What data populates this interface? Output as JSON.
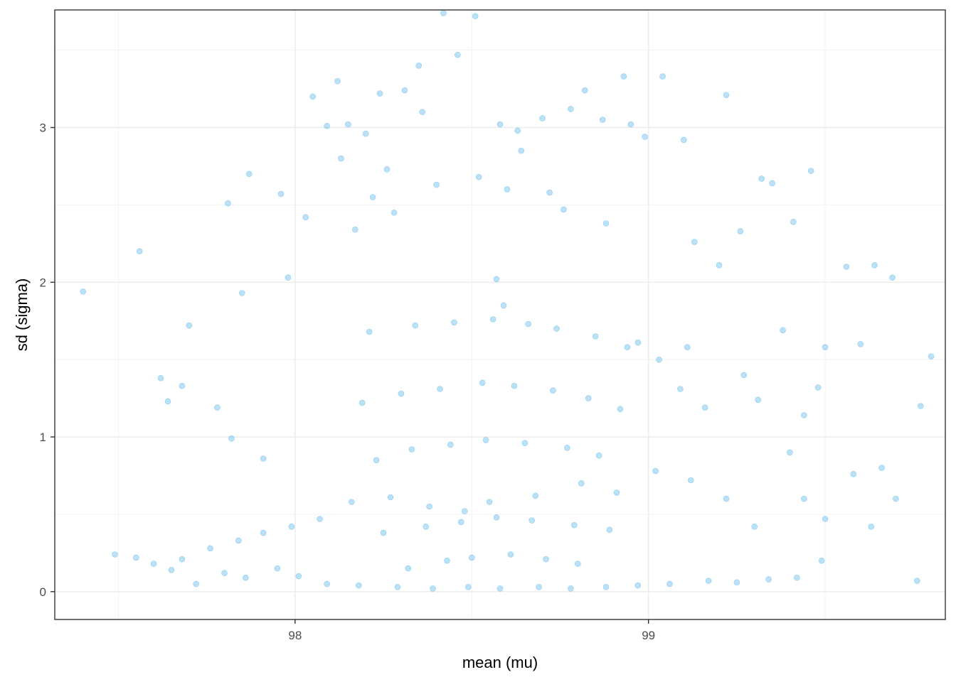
{
  "chart_data": {
    "type": "scatter",
    "xlabel": "mean (mu)",
    "ylabel": "sd (sigma)",
    "xlim": [
      97.32,
      99.84
    ],
    "ylim": [
      -0.18,
      3.76
    ],
    "x_ticks": [
      98,
      99
    ],
    "x_tick_labels": [
      "98",
      "99"
    ],
    "y_ticks": [
      0,
      1,
      2,
      3
    ],
    "y_tick_labels": [
      "0",
      "1",
      "2",
      "3"
    ],
    "grid": true,
    "legend": "none",
    "point_color": "#56B4E9",
    "point_alpha": 0.4,
    "series": [
      {
        "x": [
          98.42,
          98.51,
          98.46,
          98.35,
          98.58,
          98.24,
          98.31,
          98.12,
          98.05,
          98.15,
          98.09,
          98.82,
          98.78,
          98.93,
          99.04,
          99.22,
          98.87,
          98.7,
          98.63,
          98.95,
          98.36,
          98.2,
          98.13,
          98.26,
          98.64,
          98.99,
          99.1,
          99.32,
          99.46,
          99.35,
          98.03,
          97.96,
          97.87,
          97.98,
          97.85,
          97.81,
          97.4,
          97.56,
          97.7,
          97.68,
          97.62,
          97.64,
          97.78,
          97.49,
          97.82,
          97.91,
          98.22,
          98.4,
          98.28,
          98.17,
          98.52,
          98.6,
          98.72,
          98.76,
          98.88,
          99.13,
          99.2,
          99.26,
          99.41,
          99.56,
          99.64,
          99.69,
          99.8,
          99.77,
          99.6,
          99.5,
          99.48,
          99.38,
          99.27,
          99.16,
          99.09,
          98.97,
          99.11,
          99.31,
          99.44,
          99.66,
          99.58,
          99.4,
          99.44,
          99.49,
          99.5,
          99.76,
          99.7,
          99.63,
          99.3,
          99.22,
          99.12,
          99.02,
          98.91,
          98.81,
          98.68,
          98.55,
          98.48,
          98.38,
          98.27,
          98.16,
          98.07,
          97.99,
          97.91,
          97.84,
          97.76,
          97.68,
          97.6,
          97.55,
          97.65,
          97.72,
          97.8,
          97.86,
          97.95,
          98.01,
          98.09,
          98.18,
          98.29,
          98.39,
          98.49,
          98.58,
          98.69,
          98.78,
          98.88,
          98.97,
          99.06,
          99.17,
          99.25,
          99.34,
          99.42,
          98.21,
          98.34,
          98.45,
          98.56,
          98.66,
          98.74,
          98.85,
          98.94,
          99.03,
          98.19,
          98.3,
          98.41,
          98.53,
          98.62,
          98.73,
          98.83,
          98.92,
          98.23,
          98.33,
          98.44,
          98.54,
          98.65,
          98.77,
          98.86,
          98.25,
          98.37,
          98.47,
          98.57,
          98.67,
          98.79,
          98.89,
          98.32,
          98.43,
          98.5,
          98.61,
          98.71,
          98.8,
          98.57,
          98.59
        ],
        "y": [
          3.74,
          3.72,
          3.47,
          3.4,
          3.02,
          3.22,
          3.24,
          3.3,
          3.2,
          3.02,
          3.01,
          3.24,
          3.12,
          3.33,
          3.33,
          3.21,
          3.05,
          3.06,
          2.98,
          3.02,
          3.1,
          2.96,
          2.8,
          2.73,
          2.85,
          2.94,
          2.92,
          2.67,
          2.72,
          2.64,
          2.42,
          2.57,
          2.7,
          2.03,
          1.93,
          2.51,
          1.94,
          2.2,
          1.72,
          1.33,
          1.38,
          1.23,
          1.19,
          0.24,
          0.99,
          0.86,
          2.55,
          2.63,
          2.45,
          2.34,
          2.68,
          2.6,
          2.58,
          2.47,
          2.38,
          2.26,
          2.11,
          2.33,
          2.39,
          2.1,
          2.11,
          2.03,
          1.52,
          1.2,
          1.6,
          1.58,
          1.32,
          1.69,
          1.4,
          1.19,
          1.31,
          1.61,
          1.58,
          1.24,
          1.14,
          0.8,
          0.76,
          0.9,
          0.6,
          0.2,
          0.47,
          0.07,
          0.6,
          0.42,
          0.42,
          0.6,
          0.72,
          0.78,
          0.64,
          0.7,
          0.62,
          0.58,
          0.52,
          0.55,
          0.61,
          0.58,
          0.47,
          0.42,
          0.38,
          0.33,
          0.28,
          0.21,
          0.18,
          0.22,
          0.14,
          0.05,
          0.12,
          0.09,
          0.15,
          0.1,
          0.05,
          0.04,
          0.03,
          0.02,
          0.03,
          0.02,
          0.03,
          0.02,
          0.03,
          0.04,
          0.05,
          0.07,
          0.06,
          0.08,
          0.09,
          1.68,
          1.72,
          1.74,
          1.76,
          1.73,
          1.7,
          1.65,
          1.58,
          1.5,
          1.22,
          1.28,
          1.31,
          1.35,
          1.33,
          1.3,
          1.25,
          1.18,
          0.85,
          0.92,
          0.95,
          0.98,
          0.96,
          0.93,
          0.88,
          0.38,
          0.42,
          0.45,
          0.48,
          0.46,
          0.43,
          0.4,
          0.15,
          0.2,
          0.22,
          0.24,
          0.21,
          0.18,
          2.02,
          1.85
        ]
      }
    ]
  }
}
